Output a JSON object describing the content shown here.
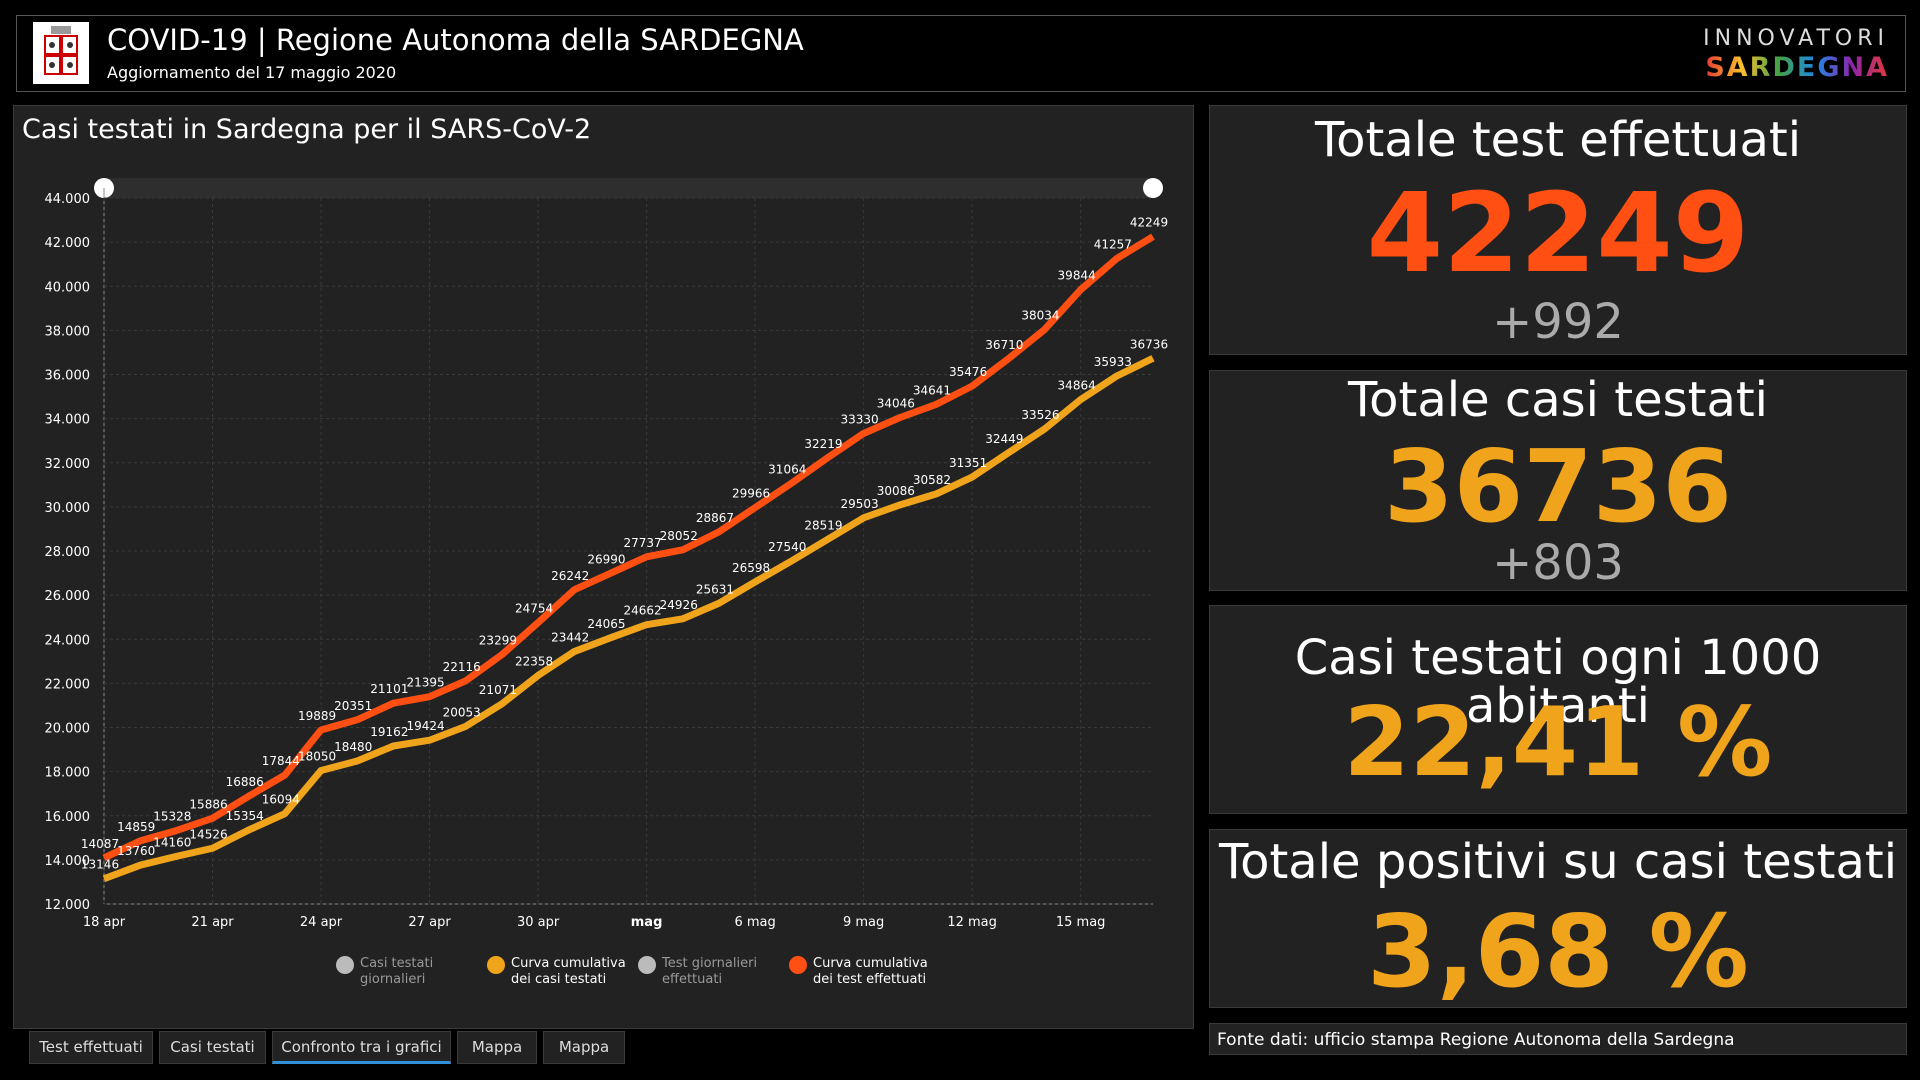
{
  "header": {
    "title": "COVID-19 | Regione Autonoma della SARDEGNA",
    "subtitle": "Aggiornamento del 17 maggio 2020",
    "brand_top": "INNOVATORI",
    "brand_bottom": "SARDEGNA"
  },
  "chart_data": {
    "type": "line",
    "title": "Casi testati in Sardegna per il SARS-CoV-2",
    "categories": [
      "18 apr",
      null,
      null,
      "21 apr",
      null,
      null,
      "24 apr",
      null,
      null,
      "27 apr",
      null,
      null,
      "30 apr",
      null,
      null,
      "mag",
      null,
      null,
      "6 mag",
      null,
      null,
      "9 mag",
      null,
      null,
      "12 mag",
      null,
      null,
      "15 mag",
      null,
      null
    ],
    "series": [
      {
        "name": "Curva cumulativa dei casi testati",
        "color": "#f0a41c",
        "values": [
          13146,
          13760,
          14160,
          14526,
          15354,
          16094,
          18050,
          18480,
          19162,
          19424,
          20053,
          21071,
          22358,
          23442,
          24065,
          24662,
          24926,
          25631,
          26598,
          27540,
          28519,
          29503,
          30086,
          30582,
          31351,
          32449,
          33526,
          34864,
          35933,
          36736
        ]
      },
      {
        "name": "Curva cumulativa dei test effettuati",
        "color": "#ff4f12",
        "values": [
          14087,
          14859,
          15328,
          15886,
          16886,
          17844,
          19889,
          20351,
          21101,
          21395,
          22116,
          23299,
          24754,
          26242,
          26990,
          27737,
          28052,
          28867,
          29966,
          31064,
          32219,
          33330,
          34046,
          34641,
          35476,
          36710,
          38034,
          39844,
          41257,
          42249
        ]
      }
    ],
    "hidden_series": [
      {
        "name": "Casi testati giornalieri"
      },
      {
        "name": "Test giornalieri effettuati"
      }
    ],
    "ylim": [
      12000,
      44000
    ],
    "yticks": [
      {
        "value": 12000,
        "label": "12.000"
      },
      {
        "value": 14000,
        "label": "14.000"
      },
      {
        "value": 16000,
        "label": "16.000"
      },
      {
        "value": 18000,
        "label": "18.000"
      },
      {
        "value": 20000,
        "label": "20.000"
      },
      {
        "value": 22000,
        "label": "22.000"
      },
      {
        "value": 24000,
        "label": "24.000"
      },
      {
        "value": 26000,
        "label": "26.000"
      },
      {
        "value": 28000,
        "label": "28.000"
      },
      {
        "value": 30000,
        "label": "30.000"
      },
      {
        "value": 32000,
        "label": "32.000"
      },
      {
        "value": 34000,
        "label": "34.000"
      },
      {
        "value": 36000,
        "label": "36.000"
      },
      {
        "value": 38000,
        "label": "38.000"
      },
      {
        "value": 40000,
        "label": "40.000"
      },
      {
        "value": 42000,
        "label": "42.000"
      },
      {
        "value": 44000,
        "label": "44.000"
      }
    ],
    "grid": true
  },
  "kpis": [
    {
      "title": "Totale test effettuati",
      "value": "42249",
      "delta": "+992",
      "color": "#ff4f12"
    },
    {
      "title": "Totale casi testati",
      "value": "36736",
      "delta": "+803",
      "color": "#f0a41c"
    },
    {
      "title": "Casi testati ogni 1000 abitanti",
      "value": "22,41 %",
      "color": "#f0a41c"
    },
    {
      "title": "Totale positivi su casi testati",
      "value": "3,68 %",
      "color": "#f0a41c"
    }
  ],
  "footer": {
    "source": "Fonte dati: ufficio stampa Regione Autonoma della Sardegna"
  },
  "tabs": [
    "Test effettuati",
    "Casi testati",
    "Confronto tra i grafici",
    "Mappa",
    "Mappa"
  ]
}
